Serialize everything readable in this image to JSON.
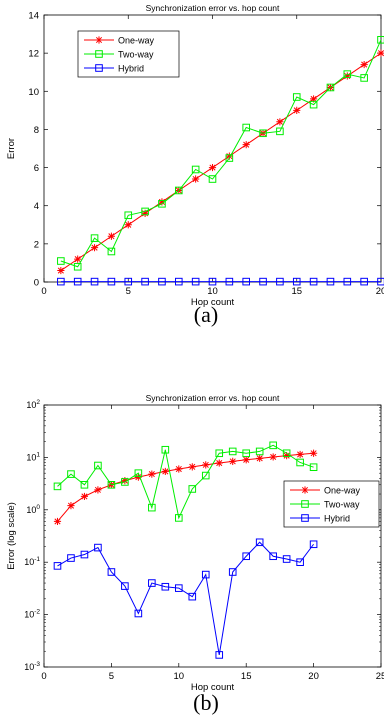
{
  "chart_data": [
    {
      "type": "line",
      "title": "Synchronization error vs. hop count",
      "xlabel": "Hop count",
      "ylabel": "Error",
      "xlim": [
        0,
        20
      ],
      "ylim": [
        0,
        14
      ],
      "xticks": [
        0,
        5,
        10,
        15,
        20
      ],
      "yticks": [
        0,
        2,
        4,
        6,
        8,
        10,
        12,
        14
      ],
      "x": [
        1,
        2,
        3,
        4,
        5,
        6,
        7,
        8,
        9,
        10,
        11,
        12,
        13,
        14,
        15,
        16,
        17,
        18,
        19,
        20
      ],
      "legend_position": "top-left",
      "series": [
        {
          "name": "One-way",
          "color": "#ff0000",
          "marker": "star",
          "values": [
            0.6,
            1.2,
            1.8,
            2.4,
            3.0,
            3.6,
            4.2,
            4.8,
            5.4,
            6.0,
            6.6,
            7.2,
            7.8,
            8.4,
            9.0,
            9.6,
            10.2,
            10.8,
            11.4,
            12.0
          ]
        },
        {
          "name": "Two-way",
          "color": "#00ee00",
          "marker": "square",
          "values": [
            1.1,
            0.8,
            2.3,
            1.6,
            3.5,
            3.7,
            4.1,
            4.8,
            5.9,
            5.4,
            6.5,
            8.1,
            7.8,
            7.9,
            9.7,
            9.3,
            10.2,
            10.9,
            10.7,
            12.7
          ]
        },
        {
          "name": "Hybrid",
          "color": "#0000ff",
          "marker": "square",
          "values": [
            0.02,
            0.02,
            0.02,
            0.02,
            0.02,
            0.02,
            0.02,
            0.02,
            0.02,
            0.02,
            0.02,
            0.02,
            0.02,
            0.02,
            0.02,
            0.02,
            0.02,
            0.02,
            0.02,
            0.02
          ]
        }
      ],
      "caption": "(a)"
    },
    {
      "type": "line",
      "title": "Synchronization error vs. hop count",
      "xlabel": "Hop count",
      "ylabel": "Error (log scale)",
      "yscale": "log",
      "xlim": [
        0,
        25
      ],
      "ylim": [
        0.001,
        100
      ],
      "xticks": [
        0,
        5,
        10,
        15,
        20,
        25
      ],
      "ytick_labels": {
        "base": "10",
        "exponents": [
          "-3",
          "-2",
          "-1",
          "0",
          "1",
          "2"
        ]
      },
      "x": [
        1,
        2,
        3,
        4,
        5,
        6,
        7,
        8,
        9,
        10,
        11,
        12,
        13,
        14,
        15,
        16,
        17,
        18,
        19,
        20
      ],
      "legend_position": "right",
      "series": [
        {
          "name": "One-way",
          "color": "#ff0000",
          "marker": "star",
          "values": [
            0.6,
            1.2,
            1.8,
            2.4,
            3.0,
            3.6,
            4.2,
            4.8,
            5.4,
            6.0,
            6.6,
            7.2,
            7.8,
            8.4,
            9.0,
            9.6,
            10.2,
            10.8,
            11.4,
            12.0
          ]
        },
        {
          "name": "Two-way",
          "color": "#00ee00",
          "marker": "square",
          "values": [
            2.8,
            4.8,
            3.0,
            7.0,
            3.0,
            3.4,
            5.0,
            1.1,
            14.0,
            0.7,
            2.5,
            4.5,
            12.0,
            13.0,
            12.0,
            13.0,
            17.0,
            12.0,
            8.0,
            6.5
          ]
        },
        {
          "name": "Hybrid",
          "color": "#0000ff",
          "marker": "square",
          "values": [
            0.085,
            0.12,
            0.14,
            0.19,
            0.065,
            0.035,
            0.0105,
            0.04,
            0.034,
            0.032,
            0.022,
            0.058,
            0.0017,
            0.065,
            0.13,
            0.24,
            0.13,
            0.115,
            0.1,
            0.22
          ]
        }
      ],
      "caption": "(b)"
    }
  ]
}
